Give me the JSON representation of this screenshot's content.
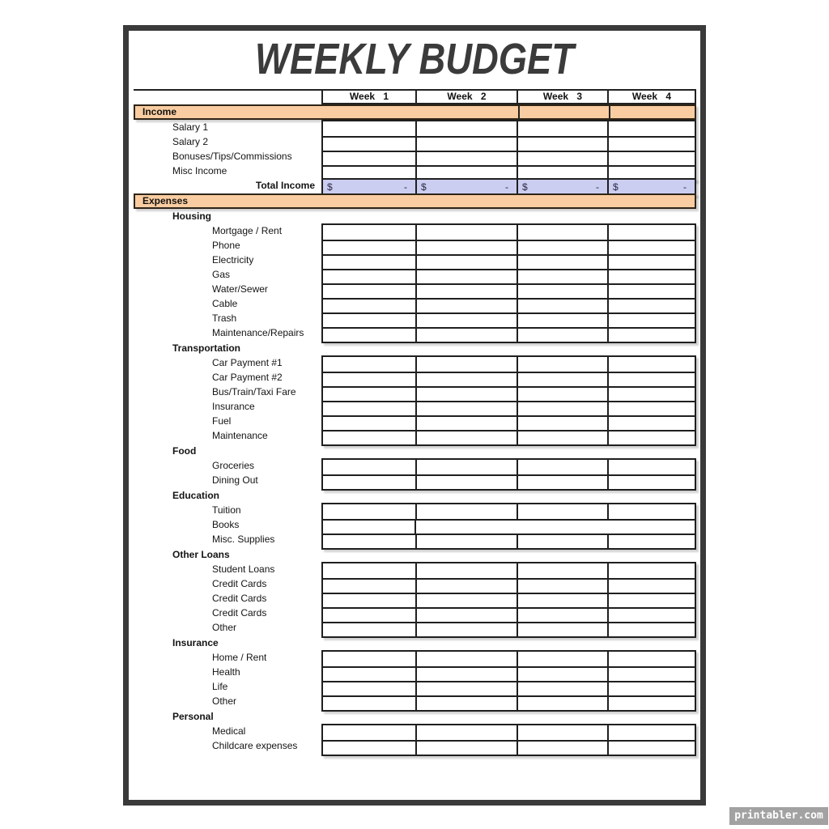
{
  "page": {
    "title": "WEEKLY BUDGET",
    "watermark": "printabler.com"
  },
  "colors": {
    "frame": "#3a3a3a",
    "section_band": "#f9cda1",
    "total_row": "#cbcdf1",
    "grid_border": "#1f1f1f",
    "title_text": "#3b3b3b",
    "watermark_bg": "#a2a2a2"
  },
  "table": {
    "week_headers": [
      "Week 1",
      "Week 2",
      "Week 3",
      "Week 4"
    ],
    "income": {
      "band_label": "Income",
      "rows": [
        "Salary 1",
        "Salary 2",
        "Bonuses/Tips/Commissions",
        "Misc Income"
      ],
      "total_label": "Total Income",
      "total_currency": "$",
      "total_amount": "-"
    },
    "expenses": {
      "band_label": "Expenses",
      "categories": [
        {
          "label": "Housing",
          "items": [
            "Mortgage / Rent",
            "Phone",
            "Electricity",
            "Gas",
            "Water/Sewer",
            "Cable",
            "Trash",
            "Maintenance/Repairs"
          ]
        },
        {
          "label": "Transportation",
          "items": [
            "Car Payment #1",
            "Car Payment #2",
            "Bus/Train/Taxi Fare",
            "Insurance",
            "Fuel",
            "Maintenance"
          ]
        },
        {
          "label": "Food",
          "items": [
            "Groceries",
            "Dining Out"
          ]
        },
        {
          "label": "Education",
          "items": [
            "Tuition",
            "Books",
            "Misc. Supplies"
          ]
        },
        {
          "label": "Other Loans",
          "items": [
            "Student Loans",
            "Credit Cards",
            "Credit Cards",
            "Credit Cards",
            "Other"
          ]
        },
        {
          "label": "Insurance",
          "items": [
            "Home / Rent",
            "Health",
            "Life",
            "Other"
          ]
        },
        {
          "label": "Personal",
          "items": [
            "Medical",
            "Childcare expenses"
          ]
        }
      ]
    }
  }
}
